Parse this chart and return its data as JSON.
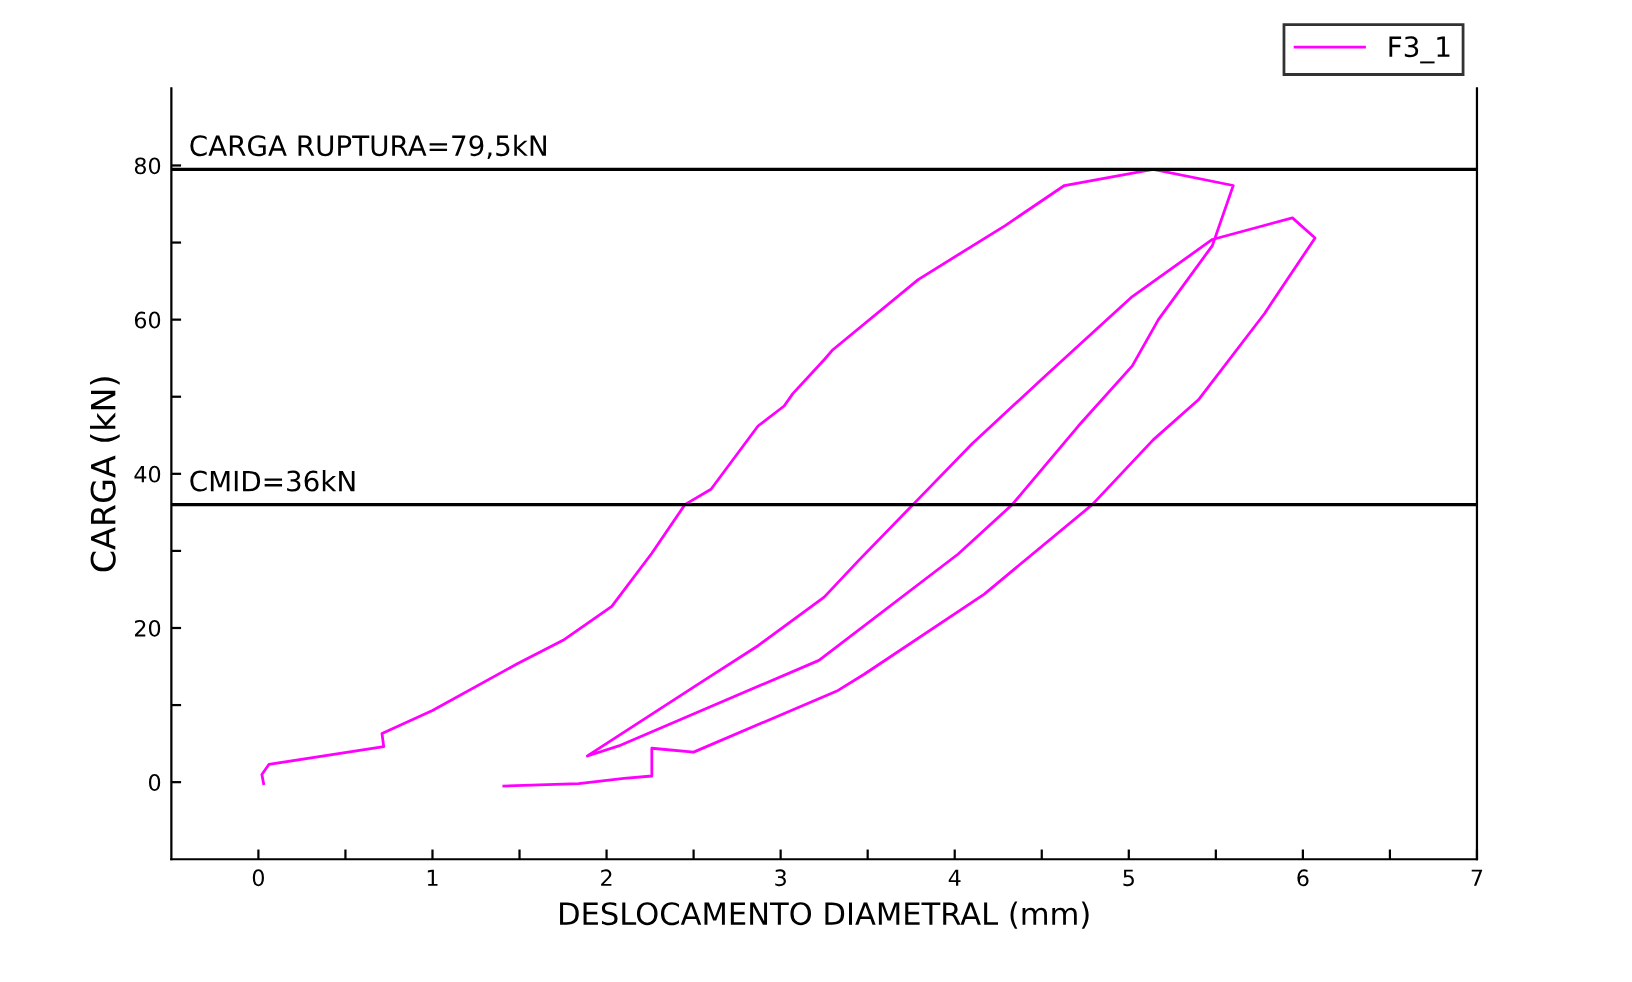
{
  "chart_data": {
    "type": "line",
    "xlabel": "DESLOCAMENTO DIAMETRAL (mm)",
    "ylabel": "CARGA (kN)",
    "xlim": [
      -0.5,
      7
    ],
    "ylim": [
      -10,
      90
    ],
    "xticks": [
      0,
      {
        "value": 0.5,
        "label": null
      },
      1,
      {
        "value": 1.5,
        "label": null
      },
      2,
      {
        "value": 2.5,
        "label": null
      },
      3,
      {
        "value": 3.5,
        "label": null
      },
      4,
      {
        "value": 4.5,
        "label": null
      },
      5,
      {
        "value": 5.5,
        "label": null
      },
      6,
      {
        "value": 6.5,
        "label": null
      },
      7
    ],
    "yticks": [
      0,
      {
        "value": 10,
        "label": null
      },
      20,
      {
        "value": 30,
        "label": null
      },
      40,
      {
        "value": 50,
        "label": null
      },
      60,
      {
        "value": 70,
        "label": null
      },
      80
    ],
    "grid": false,
    "legend": "top right",
    "marker": "none",
    "line_style": "solid",
    "series": [
      {
        "name": "F3_1",
        "color": "#ff00ff",
        "x": [
          0.03,
          0.02,
          0.06,
          0.72,
          0.71,
          1.0,
          1.49,
          1.75,
          2.03,
          2.26,
          2.45,
          2.6,
          2.87,
          3.02,
          3.07,
          3.25,
          3.3,
          3.79,
          4.29,
          4.63,
          5.14,
          5.6,
          5.48,
          5.17,
          5.02,
          4.71,
          4.33,
          4.02,
          3.22,
          2.07,
          1.89,
          2.56,
          2.87,
          3.25,
          3.45,
          3.76,
          4.1,
          4.52,
          5.02,
          5.48,
          5.94,
          6.07,
          5.78,
          5.4,
          5.14,
          4.79,
          4.17,
          3.48,
          3.33,
          2.5,
          2.26,
          2.26,
          2.1,
          1.84,
          1.41
        ],
        "values": [
          -0.2,
          1,
          2.3,
          4.6,
          6.3,
          9.3,
          15.4,
          18.4,
          22.8,
          29.7,
          36,
          38,
          46.2,
          48.8,
          50.4,
          54.8,
          56.1,
          65.2,
          72.2,
          77.4,
          79.5,
          77.4,
          69.6,
          60,
          54,
          46.2,
          36,
          29.6,
          15.8,
          4.7,
          3.4,
          13.2,
          17.7,
          24,
          28.8,
          36,
          43.9,
          52.7,
          63,
          70.4,
          73.2,
          70.6,
          60.8,
          49.6,
          44.4,
          36,
          24.4,
          14,
          11.9,
          3.9,
          4.4,
          0.8,
          0.5,
          -0.2,
          -0.5
        ]
      }
    ],
    "ref_lines": [
      {
        "axis": "y",
        "value": 79.5,
        "label": "CARGA RUPTURA=79,5kN",
        "color": "#000000"
      },
      {
        "axis": "y",
        "value": 36,
        "label": "CMID=36kN",
        "color": "#000000"
      }
    ]
  }
}
